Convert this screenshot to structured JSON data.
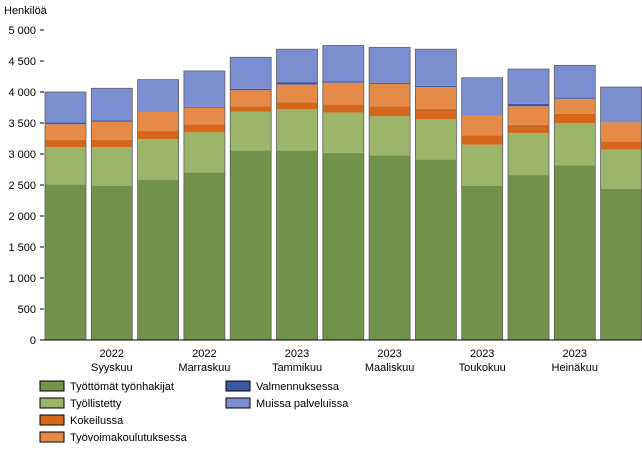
{
  "chart_data": {
    "type": "bar",
    "stacked": true,
    "ylabel": "Henkilöä",
    "ylim": [
      0,
      5000
    ],
    "yticks": [
      {
        "value": 0,
        "label": "0"
      },
      {
        "value": 500,
        "label": "500"
      },
      {
        "value": 1000,
        "label": "1 000"
      },
      {
        "value": 1500,
        "label": "1 500"
      },
      {
        "value": 2000,
        "label": "2 000"
      },
      {
        "value": 2500,
        "label": "2 500"
      },
      {
        "value": 3000,
        "label": "3 000"
      },
      {
        "value": 3500,
        "label": "3 500"
      },
      {
        "value": 4000,
        "label": "4 000"
      },
      {
        "value": 4500,
        "label": "4 500"
      },
      {
        "value": 5000,
        "label": "5 000"
      }
    ],
    "xtick_labels": [
      {
        "index": 1,
        "year": "2022",
        "month": "Syyskuu"
      },
      {
        "index": 3,
        "year": "2022",
        "month": "Marraskuu"
      },
      {
        "index": 5,
        "year": "2023",
        "month": "Tammikuu"
      },
      {
        "index": 7,
        "year": "2023",
        "month": "Maaliskuu"
      },
      {
        "index": 9,
        "year": "2023",
        "month": "Toukokuu"
      },
      {
        "index": 11,
        "year": "2023",
        "month": "Heinäkuu"
      }
    ],
    "grid": false,
    "legend_position": "bottom",
    "series": [
      {
        "name": "Työttömät työnhakijat",
        "color": "#70924a",
        "values": [
          2510,
          2490,
          2580,
          2700,
          3060,
          3060,
          3020,
          2980,
          2910,
          2490,
          2660,
          2820,
          2440
        ]
      },
      {
        "name": "Työllistetty",
        "color": "#9bb56a",
        "values": [
          600,
          620,
          660,
          650,
          620,
          660,
          650,
          630,
          650,
          660,
          680,
          680,
          630
        ]
      },
      {
        "name": "Kokeilussa",
        "color": "#d5671a",
        "values": [
          120,
          120,
          130,
          130,
          90,
          110,
          130,
          160,
          170,
          150,
          130,
          150,
          130
        ]
      },
      {
        "name": "Työvoimakoulutuksessa",
        "color": "#e58b47",
        "values": [
          250,
          290,
          310,
          270,
          260,
          290,
          350,
          360,
          350,
          320,
          300,
          240,
          310
        ]
      },
      {
        "name": "Valmennuksessa",
        "color": "#3b5aa5",
        "values": [
          30,
          20,
          10,
          10,
          20,
          40,
          20,
          20,
          20,
          0,
          40,
          20,
          0
        ]
      },
      {
        "name": "Muissa palveluissa",
        "color": "#7b8ed0",
        "values": [
          490,
          520,
          510,
          580,
          510,
          530,
          580,
          570,
          590,
          610,
          560,
          520,
          570
        ]
      }
    ]
  }
}
